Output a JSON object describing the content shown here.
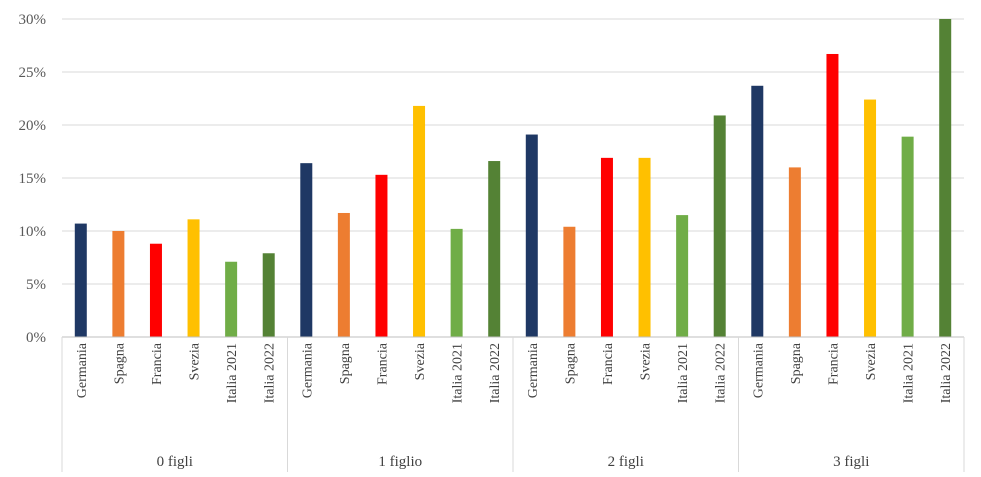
{
  "chart_data": {
    "type": "bar",
    "title": "",
    "xlabel": "",
    "ylabel": "",
    "ylim": [
      0,
      30
    ],
    "yticks": [
      0,
      5,
      10,
      15,
      20,
      25,
      30
    ],
    "ytick_labels": [
      "0%",
      "5%",
      "10%",
      "15%",
      "20%",
      "25%",
      "30%"
    ],
    "grid": true,
    "legend": "none",
    "subcategories": [
      "Germania",
      "Spagna",
      "Francia",
      "Svezia",
      "Italia 2021",
      "Italia 2022"
    ],
    "colors": [
      "#1f3864",
      "#ed7d31",
      "#ff0000",
      "#ffc000",
      "#70ad47",
      "#548235"
    ],
    "groups": [
      {
        "label": "0 figli",
        "values": [
          10.7,
          10.0,
          8.8,
          11.1,
          7.1,
          7.9
        ]
      },
      {
        "label": "1 figlio",
        "values": [
          16.4,
          11.7,
          15.3,
          21.8,
          10.2,
          16.6
        ]
      },
      {
        "label": "2 figli",
        "values": [
          19.1,
          10.4,
          16.9,
          16.9,
          11.5,
          20.9
        ]
      },
      {
        "label": "3 figli",
        "values": [
          23.7,
          16.0,
          26.7,
          22.4,
          18.9,
          30.0
        ]
      }
    ]
  }
}
